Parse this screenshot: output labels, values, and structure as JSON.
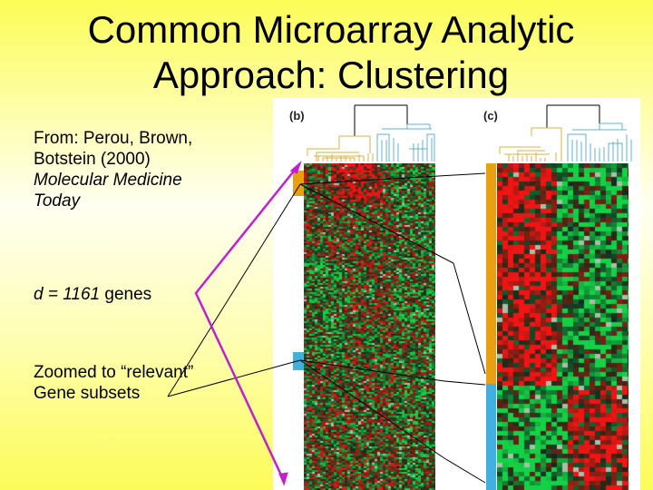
{
  "slide": {
    "title_line1": "Common Microarray Analytic",
    "title_line2": "Approach:  Clustering",
    "citation": {
      "line1": "From: Perou, Brown,",
      "line2": "Botstein (2000)",
      "journal_line1": "Molecular Medicine",
      "journal_line2": "Today"
    },
    "genes": {
      "d_label": "d",
      "equals": " = ",
      "count": "1161",
      "unit": " genes"
    },
    "zoom_note": {
      "line1": "Zoomed to “relevant”",
      "line2": "Gene subsets"
    }
  },
  "figure": {
    "panel_b_label": "(b)",
    "panel_c_label": "(c)",
    "colors": {
      "cluster_orange": "#e8a010",
      "cluster_blue": "#40b0e0",
      "dendro_orange": "#d8b040",
      "dendro_blue": "#60b0d0",
      "heat_red": "#e02020",
      "heat_green": "#10c040",
      "arrow_magenta": "#c020d0"
    }
  }
}
